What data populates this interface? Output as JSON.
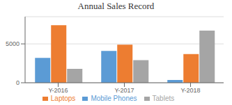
{
  "chart_data": {
    "type": "bar",
    "title": "Annual Sales Record",
    "categories": [
      "Y-2016",
      "Y-2017",
      "Y-2018"
    ],
    "series": [
      {
        "name": "Mobile Phones",
        "color": "#5B9BD5",
        "values": [
          3200,
          4100,
          350
        ]
      },
      {
        "name": "Laptops",
        "color": "#ED7D31",
        "values": [
          7400,
          4900,
          3700
        ]
      },
      {
        "name": "Tablets",
        "color": "#A5A5A5",
        "values": [
          1800,
          2900,
          6700
        ]
      }
    ],
    "ylim": [
      0,
      8500
    ],
    "yticks": [
      0,
      5000
    ],
    "grid": true,
    "legend": "bottom"
  }
}
